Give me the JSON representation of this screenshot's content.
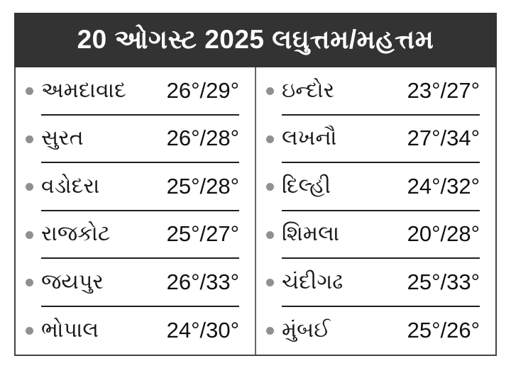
{
  "header": {
    "title": "20 ઓગસ્ટ 2025 લઘુત્તમ/મહત્તમ"
  },
  "colors": {
    "page_bg": "#ffffff",
    "header_bg": "#333333",
    "header_text": "#ffffff",
    "body_text": "#1a1a1a",
    "bullet": "#909090",
    "separator": "#1f1f1f",
    "card_border": "#444444",
    "divider": "#666666"
  },
  "table": {
    "left_column": [
      {
        "city": "અમદાવાદ",
        "temp": "26°/29°"
      },
      {
        "city": "સુરત",
        "temp": "26°/28°"
      },
      {
        "city": "વડોદરા",
        "temp": "25°/28°"
      },
      {
        "city": "રાજકોટ",
        "temp": "25°/27°"
      },
      {
        "city": "જયપુર",
        "temp": "26°/33°"
      },
      {
        "city": "ભોપાલ",
        "temp": "24°/30°"
      }
    ],
    "right_column": [
      {
        "city": "ઇન્દોર",
        "temp": "23°/27°"
      },
      {
        "city": "લખનૌ",
        "temp": "27°/34°"
      },
      {
        "city": "દિલ્હી",
        "temp": "24°/32°"
      },
      {
        "city": "શિમલા",
        "temp": "20°/28°"
      },
      {
        "city": "ચંદીગઢ",
        "temp": "25°/33°"
      },
      {
        "city": "મુંબઈ",
        "temp": "25°/26°"
      }
    ]
  },
  "chart_data": {
    "type": "table",
    "title": "20 ઓગસ્ટ 2025 લઘુત્તમ/મહત્તમ",
    "columns": [
      "city",
      "min_temp_c",
      "max_temp_c"
    ],
    "rows": [
      {
        "city": "અમદાવાદ",
        "min": 26,
        "max": 29
      },
      {
        "city": "સુરત",
        "min": 26,
        "max": 28
      },
      {
        "city": "વડોદરા",
        "min": 25,
        "max": 28
      },
      {
        "city": "રાજકોટ",
        "min": 25,
        "max": 27
      },
      {
        "city": "જયપુર",
        "min": 26,
        "max": 33
      },
      {
        "city": "ભોપાલ",
        "min": 24,
        "max": 30
      },
      {
        "city": "ઇન્દોર",
        "min": 23,
        "max": 27
      },
      {
        "city": "લખનૌ",
        "min": 27,
        "max": 34
      },
      {
        "city": "દિલ્હી",
        "min": 24,
        "max": 32
      },
      {
        "city": "શિમલા",
        "min": 20,
        "max": 28
      },
      {
        "city": "ચંદીગઢ",
        "min": 25,
        "max": 33
      },
      {
        "city": "મુંબઈ",
        "min": 25,
        "max": 26
      }
    ]
  }
}
